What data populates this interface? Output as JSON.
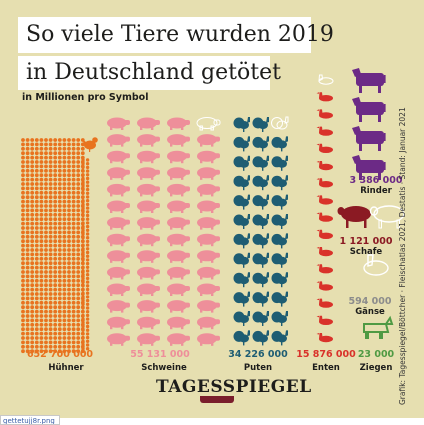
{
  "title_line1": "So viele Tiere wurden 2019",
  "title_line2": "in Deutschland getötet",
  "subtitle": "in Millionen pro Symbol",
  "source": "Grafik: Tagesspiegel/Böttcher · Fleischatlas 2021, Destatis · Stand: Januar 2021",
  "logo": "TAGESSPIEGEL",
  "filename": "gettetujj8r.png",
  "colors": {
    "background": "#e6dfb0",
    "huehner": "#e8731f",
    "schweine": "#ee8f9a",
    "puten": "#1e5d73",
    "enten": "#d9322a",
    "rinder": "#6c2a86",
    "schafe": "#8b1a23",
    "gaense": "#8c8c8c",
    "ziegen": "#4f9a43"
  },
  "chart_data": {
    "type": "pictogram",
    "unit": "in Millionen pro Symbol",
    "categories": [
      "Hühner",
      "Schweine",
      "Puten",
      "Enten",
      "Rinder",
      "Schafe",
      "Gänse",
      "Ziegen"
    ],
    "series": [
      {
        "label": "Hühner",
        "value": 652700000,
        "value_text": "652 700 000",
        "icon": "chicken-icon"
      },
      {
        "label": "Schweine",
        "value": 55131000,
        "value_text": "55 131 000",
        "icon": "pig-icon"
      },
      {
        "label": "Puten",
        "value": 34226000,
        "value_text": "34 226 000",
        "icon": "turkey-icon"
      },
      {
        "label": "Enten",
        "value": 15876000,
        "value_text": "15 876 000",
        "icon": "duck-icon"
      },
      {
        "label": "Rinder",
        "value": 3386000,
        "value_text": "3 386 000",
        "icon": "cow-icon"
      },
      {
        "label": "Schafe",
        "value": 1121000,
        "value_text": "1 121 000",
        "icon": "sheep-icon"
      },
      {
        "label": "Gänse",
        "value": 594000,
        "value_text": "594 000",
        "icon": "goose-icon"
      },
      {
        "label": "Ziegen",
        "value": 23000,
        "value_text": "23 000",
        "icon": "goat-icon"
      }
    ]
  }
}
